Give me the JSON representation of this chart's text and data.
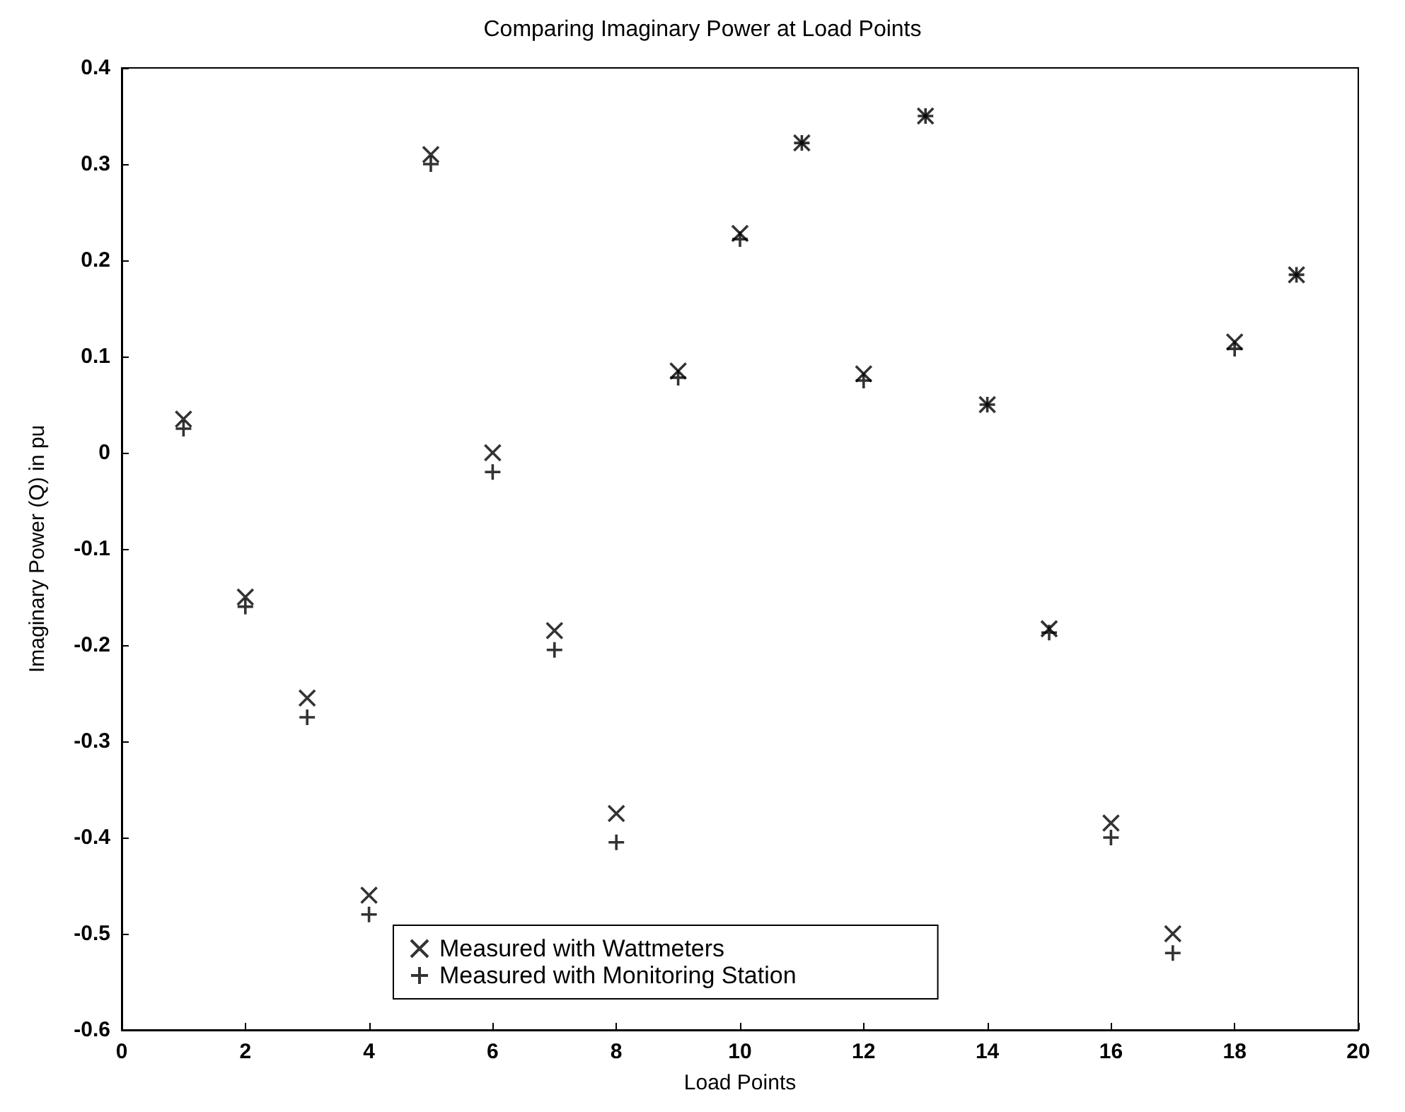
{
  "chart_data": {
    "type": "scatter",
    "title": "Comparing Imaginary Power at Load Points",
    "xlabel": "Load Points",
    "ylabel": "Imaginary Power (Q) in pu",
    "x": [
      1,
      2,
      3,
      4,
      5,
      6,
      7,
      8,
      9,
      10,
      11,
      12,
      13,
      14,
      15,
      16,
      17,
      18,
      19
    ],
    "series": [
      {
        "name": "Measured with Wattmeters",
        "color": "#000000",
        "marker": "cross",
        "values": [
          0.035,
          -0.15,
          -0.255,
          -0.46,
          0.31,
          0.0,
          -0.185,
          -0.375,
          0.085,
          0.228,
          0.322,
          0.082,
          0.35,
          0.05,
          -0.183,
          -0.385,
          -0.5,
          0.115,
          0.185
        ]
      },
      {
        "name": "Measured with Monitoring Station",
        "color": "#000000",
        "marker": "plus",
        "values": [
          0.025,
          -0.16,
          -0.275,
          -0.48,
          0.3,
          -0.02,
          -0.205,
          -0.405,
          0.078,
          0.222,
          0.322,
          0.075,
          0.35,
          0.05,
          -0.187,
          -0.4,
          -0.52,
          0.108,
          0.185
        ]
      }
    ],
    "xlim": [
      0,
      20
    ],
    "xticks": [
      0,
      2,
      4,
      6,
      8,
      10,
      12,
      14,
      16,
      18,
      20
    ],
    "ylim": [
      -0.6,
      0.4
    ],
    "yticks": [
      -0.6,
      -0.5,
      -0.4,
      -0.3,
      -0.2,
      -0.1,
      0,
      0.1,
      0.2,
      0.3,
      0.4
    ],
    "grid": false,
    "legend": "bottom"
  }
}
